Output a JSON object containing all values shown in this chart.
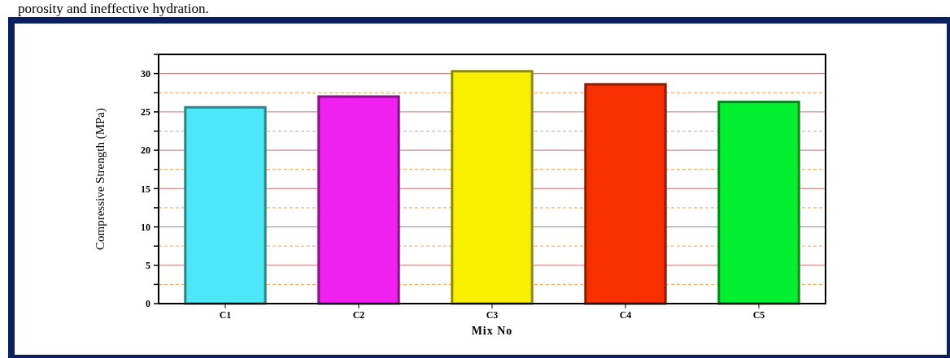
{
  "chart_data": {
    "type": "bar",
    "xlabel": "Mix No",
    "ylabel": "Compressive Strength (MPa)",
    "annotations": [
      "porosity and ineffective hydration."
    ],
    "categories": [
      "C1",
      "C2",
      "C3",
      "C4",
      "C5"
    ],
    "values": [
      25.6,
      27.0,
      30.3,
      28.6,
      26.3
    ],
    "colors": [
      "#4de8f8",
      "#f020f0",
      "#f8f000",
      "#f83000",
      "#00f030"
    ],
    "ylim": [
      0,
      32.5
    ],
    "yticks": [
      0,
      {
        "value": 2.5,
        "label": null
      },
      5,
      {
        "value": 7.5,
        "label": null
      },
      10,
      {
        "value": 12.5,
        "label": null
      },
      15,
      {
        "value": 17.5,
        "label": null
      },
      20,
      {
        "value": 22.5,
        "label": null
      },
      25,
      {
        "value": 27.5,
        "label": null
      },
      30,
      {
        "value": 32.5,
        "label": null
      }
    ],
    "grid": true
  }
}
